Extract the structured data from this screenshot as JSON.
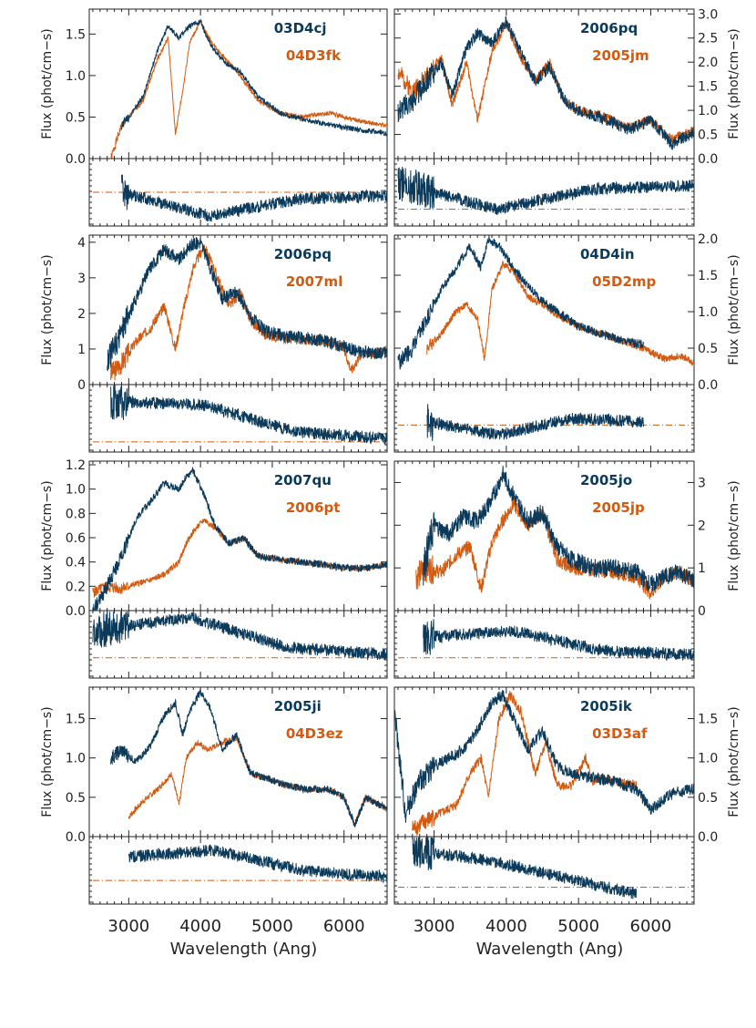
{
  "colors": {
    "blue": "#0b3a5b",
    "orange": "#d35a0f",
    "axis": "#222222"
  },
  "chart_data": {
    "type": "line",
    "figure": "grid of 4 rows x 2 columns of spectrum comparison panels, each with a residual sub-panel",
    "xlabel": "Wavelength (Ang)",
    "ylabel": "Flux (phot/cm−s)",
    "xlim": [
      2450,
      6600
    ],
    "xticks": [
      3000,
      4000,
      5000,
      6000
    ],
    "grid": false,
    "panels": [
      {
        "top": "03D4cj",
        "bottom": "04D3fk",
        "ylim": [
          0,
          1.8
        ],
        "yticks": [
          "0.0",
          "0.5",
          "1.0",
          "1.5"
        ],
        "ylabel_side": "left",
        "a_x": [
          2700,
          2900,
          3050,
          3200,
          3400,
          3550,
          3700,
          3850,
          4000,
          4150,
          4350,
          4550,
          4800,
          5100,
          5400,
          5800,
          6200,
          6600
        ],
        "a_y": [
          0.0,
          0.4,
          0.55,
          0.75,
          1.3,
          1.6,
          1.45,
          1.6,
          1.65,
          1.35,
          1.15,
          1.05,
          0.75,
          0.55,
          0.48,
          0.4,
          0.35,
          0.3
        ],
        "b_x": [
          2750,
          2900,
          3050,
          3200,
          3400,
          3550,
          3650,
          3750,
          3850,
          4000,
          4150,
          4350,
          4550,
          4800,
          5100,
          5400,
          5800,
          6200,
          6600
        ],
        "b_y": [
          0.0,
          0.4,
          0.55,
          0.7,
          1.2,
          1.45,
          0.3,
          0.8,
          1.4,
          1.65,
          1.4,
          1.2,
          1.0,
          0.7,
          0.55,
          0.5,
          0.55,
          0.45,
          0.4
        ],
        "a_start": 2900,
        "a_end": 6600,
        "b_start": 2750,
        "b_end": 6600,
        "zero": 0.5,
        "rlevel": [
          0.5,
          0.85,
          0.6,
          0.55
        ],
        "noise": 0.035,
        "seed": 1
      },
      {
        "top": "2006pq",
        "bottom": "2005jm",
        "ylim": [
          0,
          3.1
        ],
        "yticks": [
          "0.0",
          "0.5",
          "1.0",
          "1.5",
          "2.0",
          "2.5",
          "3.0"
        ],
        "ylabel_side": "right",
        "a_x": [
          2500,
          2700,
          2900,
          3100,
          3250,
          3450,
          3600,
          3800,
          4000,
          4200,
          4400,
          4600,
          4800,
          5000,
          5300,
          5700,
          6000,
          6300,
          6600
        ],
        "a_y": [
          1.0,
          1.2,
          1.6,
          2.0,
          1.3,
          2.3,
          2.6,
          2.4,
          2.85,
          2.2,
          1.6,
          1.9,
          1.2,
          1.0,
          0.85,
          0.6,
          0.8,
          0.3,
          0.55
        ],
        "b_x": [
          2500,
          2700,
          2900,
          3100,
          3250,
          3450,
          3600,
          3800,
          4000,
          4200,
          4400,
          4600,
          4800,
          5000,
          5300,
          5700,
          6000,
          6300,
          6600
        ],
        "b_y": [
          1.8,
          1.4,
          1.7,
          2.1,
          1.1,
          2.0,
          0.8,
          2.2,
          2.8,
          2.1,
          1.6,
          2.0,
          1.2,
          1.0,
          0.9,
          0.65,
          0.8,
          0.4,
          0.6
        ],
        "a_start": 2500,
        "a_end": 6600,
        "b_start": 2500,
        "b_end": 6600,
        "zero": 0.75,
        "rlevel": [
          0.35,
          0.75,
          0.45,
          0.4
        ],
        "noise": 0.08,
        "seed": 2
      },
      {
        "top": "2006pq",
        "bottom": "2007ml",
        "ylim": [
          0,
          4.2
        ],
        "yticks": [
          "0",
          "1",
          "2",
          "3",
          "4"
        ],
        "ylabel_side": "left",
        "a_x": [
          2700,
          2900,
          3100,
          3300,
          3500,
          3700,
          3850,
          4000,
          4150,
          4300,
          4500,
          4700,
          4900,
          5200,
          5500,
          5800,
          6100,
          6300,
          6600
        ],
        "a_y": [
          0.6,
          1.5,
          2.4,
          3.3,
          3.8,
          3.5,
          3.9,
          4.0,
          3.2,
          2.4,
          2.6,
          1.9,
          1.5,
          1.35,
          1.3,
          1.2,
          1.0,
          0.9,
          0.9
        ],
        "b_x": [
          2700,
          2900,
          3100,
          3300,
          3500,
          3650,
          3750,
          3900,
          4050,
          4200,
          4400,
          4550,
          4700,
          4900,
          5200,
          5500,
          5800,
          6000,
          6100,
          6250,
          6600
        ],
        "b_y": [
          0.2,
          0.6,
          1.2,
          1.6,
          2.2,
          1.0,
          2.0,
          3.3,
          3.9,
          3.2,
          2.2,
          2.6,
          1.8,
          1.4,
          1.3,
          1.25,
          1.2,
          1.0,
          0.4,
          0.9,
          0.9
        ],
        "a_start": 2700,
        "a_end": 6600,
        "b_start": 2750,
        "b_end": 6600,
        "zero": 0.85,
        "rlevel": [
          0.25,
          0.3,
          0.7,
          0.8
        ],
        "noise": 0.09,
        "seed": 3
      },
      {
        "top": "04D4in",
        "bottom": "05D2mp",
        "ylim": [
          0,
          2.05
        ],
        "yticks": [
          "0.0",
          "0.5",
          "1.0",
          "1.5",
          "2.0"
        ],
        "ylabel_side": "right",
        "a_x": [
          2500,
          2700,
          2900,
          3100,
          3300,
          3500,
          3650,
          3750,
          3900,
          4100,
          4300,
          4500,
          4700,
          5000,
          5300,
          5600,
          5900
        ],
        "a_y": [
          0.3,
          0.5,
          0.9,
          1.3,
          1.6,
          1.9,
          1.6,
          2.0,
          1.9,
          1.6,
          1.35,
          1.15,
          1.0,
          0.8,
          0.7,
          0.6,
          0.55
        ],
        "b_x": [
          2900,
          3100,
          3300,
          3450,
          3600,
          3700,
          3800,
          3950,
          4100,
          4300,
          4500,
          4700,
          5000,
          5300,
          5600,
          5900,
          6200,
          6400,
          6600
        ],
        "b_y": [
          0.5,
          0.7,
          1.0,
          1.1,
          0.9,
          0.35,
          1.3,
          1.65,
          1.55,
          1.2,
          1.1,
          0.95,
          0.8,
          0.7,
          0.6,
          0.5,
          0.35,
          0.4,
          0.3
        ],
        "a_start": 2500,
        "a_end": 5900,
        "b_start": 2900,
        "b_end": 6600,
        "zero": 0.6,
        "rlevel": [
          0.55,
          0.75,
          0.5,
          0.55
        ],
        "noise": 0.06,
        "seed": 4
      },
      {
        "top": "2007qu",
        "bottom": "2006pt",
        "ylim": [
          0,
          1.23
        ],
        "yticks": [
          "0.0",
          "0.2",
          "0.4",
          "0.6",
          "0.8",
          "1.0",
          "1.2"
        ],
        "ylabel_side": "left",
        "a_x": [
          2500,
          2700,
          2900,
          3100,
          3300,
          3500,
          3700,
          3800,
          3900,
          4050,
          4200,
          4400,
          4600,
          4800,
          5100,
          5400,
          5700,
          6000,
          6300,
          6600
        ],
        "a_y": [
          0.0,
          0.2,
          0.45,
          0.75,
          0.9,
          1.05,
          1.0,
          1.1,
          1.15,
          0.95,
          0.7,
          0.55,
          0.6,
          0.45,
          0.42,
          0.4,
          0.38,
          0.35,
          0.35,
          0.38
        ],
        "b_x": [
          2500,
          2700,
          2900,
          3100,
          3300,
          3500,
          3700,
          3800,
          3900,
          4050,
          4200,
          4400,
          4600,
          4800,
          5100,
          5400,
          5700,
          6000,
          6300,
          6600
        ],
        "b_y": [
          0.15,
          0.2,
          0.18,
          0.22,
          0.25,
          0.3,
          0.4,
          0.55,
          0.65,
          0.75,
          0.68,
          0.55,
          0.6,
          0.45,
          0.42,
          0.4,
          0.38,
          0.35,
          0.35,
          0.38
        ],
        "a_start": 2500,
        "a_end": 6600,
        "b_start": 2500,
        "b_end": 6600,
        "zero": 0.7,
        "rlevel": [
          0.3,
          0.1,
          0.55,
          0.65
        ],
        "noise": 0.05,
        "seed": 5
      },
      {
        "top": "2005jo",
        "bottom": "2005jp",
        "ylim": [
          0,
          3.5
        ],
        "yticks": [
          "0",
          "1",
          "2",
          "3"
        ],
        "ylabel_side": "right",
        "a_x": [
          2850,
          3000,
          3200,
          3400,
          3600,
          3800,
          3950,
          4100,
          4300,
          4500,
          4700,
          4900,
          5200,
          5500,
          5800,
          6000,
          6200,
          6400,
          6600
        ],
        "a_y": [
          1.0,
          2.0,
          1.8,
          2.2,
          2.1,
          2.6,
          3.2,
          2.7,
          2.1,
          2.3,
          1.5,
          1.2,
          1.0,
          1.0,
          0.9,
          0.6,
          0.8,
          0.9,
          0.7
        ],
        "b_x": [
          2750,
          2900,
          3100,
          3300,
          3500,
          3650,
          3800,
          3950,
          4100,
          4300,
          4500,
          4700,
          4900,
          5200,
          5500,
          5800,
          6000,
          6200,
          6400,
          6600
        ],
        "b_y": [
          0.8,
          1.0,
          0.9,
          1.3,
          1.5,
          0.5,
          1.6,
          2.1,
          2.5,
          2.0,
          2.3,
          1.2,
          1.0,
          0.95,
          0.9,
          0.8,
          0.4,
          0.8,
          0.9,
          0.7
        ],
        "a_start": 2850,
        "a_end": 6600,
        "b_start": 2750,
        "b_end": 6600,
        "zero": 0.7,
        "rlevel": [
          0.4,
          0.3,
          0.6,
          0.65
        ],
        "noise": 0.12,
        "seed": 6
      },
      {
        "top": "2005ji",
        "bottom": "04D3ez",
        "ylim": [
          0,
          1.9
        ],
        "yticks": [
          "0.0",
          "0.5",
          "1.0",
          "1.5"
        ],
        "ylabel_side": "left",
        "a_x": [
          2750,
          2900,
          3100,
          3300,
          3500,
          3650,
          3750,
          3850,
          4000,
          4150,
          4300,
          4500,
          4700,
          4900,
          5200,
          5500,
          5800,
          6000,
          6150,
          6300,
          6600
        ],
        "a_y": [
          1.0,
          1.1,
          0.95,
          1.15,
          1.55,
          1.7,
          1.3,
          1.6,
          1.85,
          1.6,
          1.1,
          1.3,
          0.8,
          0.75,
          0.65,
          0.6,
          0.6,
          0.5,
          0.15,
          0.5,
          0.35
        ],
        "b_x": [
          3000,
          3200,
          3400,
          3600,
          3700,
          3800,
          3950,
          4100,
          4300,
          4500,
          4700,
          4900,
          5200,
          5500,
          5800,
          6000,
          6150,
          6300,
          6600
        ],
        "b_y": [
          0.25,
          0.45,
          0.6,
          0.8,
          0.4,
          1.0,
          1.2,
          1.1,
          1.2,
          1.25,
          0.8,
          0.75,
          0.65,
          0.6,
          0.6,
          0.5,
          0.15,
          0.5,
          0.35
        ],
        "a_start": 2750,
        "a_end": 6600,
        "b_start": 3000,
        "b_end": 6600,
        "zero": 0.65,
        "rlevel": [
          0.3,
          0.2,
          0.5,
          0.6
        ],
        "noise": 0.05,
        "seed": 7
      },
      {
        "top": "2005ik",
        "bottom": "03D3af",
        "ylim": [
          0,
          1.9
        ],
        "yticks": [
          "0.0",
          "0.5",
          "1.0",
          "1.5"
        ],
        "ylabel_side": "right",
        "a_x": [
          2450,
          2600,
          2800,
          3000,
          3200,
          3400,
          3600,
          3800,
          3950,
          4100,
          4300,
          4500,
          4700,
          4900,
          5200,
          5500,
          5800,
          6000,
          6300,
          6600
        ],
        "a_y": [
          1.6,
          0.3,
          0.7,
          0.9,
          1.0,
          1.1,
          1.35,
          1.7,
          1.8,
          1.5,
          1.1,
          1.35,
          0.9,
          0.8,
          0.75,
          0.7,
          0.6,
          0.35,
          0.55,
          0.6
        ],
        "b_x": [
          2700,
          2900,
          3100,
          3300,
          3500,
          3650,
          3750,
          3900,
          4050,
          4200,
          4400,
          4550,
          4700,
          4900,
          5100,
          5200,
          5300,
          5500,
          5800
        ],
        "b_y": [
          0.1,
          0.2,
          0.3,
          0.4,
          0.8,
          1.0,
          0.5,
          1.5,
          1.8,
          1.6,
          0.8,
          1.2,
          0.65,
          0.65,
          1.0,
          0.7,
          0.75,
          0.7,
          0.65
        ],
        "a_start": 2450,
        "a_end": 6600,
        "b_start": 2700,
        "b_end": 5800,
        "zero": 0.75,
        "rlevel": [
          0.2,
          0.35,
          0.6,
          0.85
        ],
        "noise": 0.08,
        "seed": 8
      }
    ]
  }
}
